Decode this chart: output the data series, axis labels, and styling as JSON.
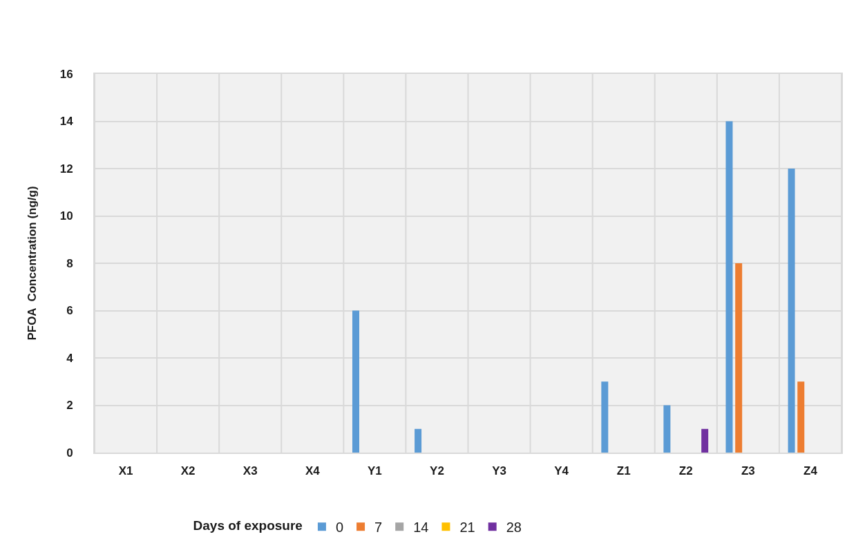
{
  "chart_data": {
    "type": "bar",
    "ylabel": "PFOA  Concentration (ng/g)",
    "legend_title": "Days of exposure",
    "categories": [
      "X1",
      "X2",
      "X3",
      "X4",
      "Y1",
      "Y2",
      "Y3",
      "Y4",
      "Z1",
      "Z2",
      "Z3",
      "Z4"
    ],
    "series": [
      {
        "name": "0",
        "color": "#5b9bd5",
        "values": [
          0,
          0,
          0,
          0,
          6,
          1,
          0,
          0,
          3,
          2,
          14,
          12
        ]
      },
      {
        "name": "7",
        "color": "#ed7d31",
        "values": [
          0,
          0,
          0,
          0,
          0,
          0,
          0,
          0,
          0,
          0,
          8,
          3
        ]
      },
      {
        "name": "14",
        "color": "#a5a5a5",
        "values": [
          0,
          0,
          0,
          0,
          0,
          0,
          0,
          0,
          0,
          0,
          0,
          0
        ]
      },
      {
        "name": "21",
        "color": "#ffc000",
        "values": [
          0,
          0,
          0,
          0,
          0,
          0,
          0,
          0,
          0,
          0,
          0,
          0
        ]
      },
      {
        "name": "28",
        "color": "#7030a0",
        "values": [
          0,
          0,
          0,
          0,
          0,
          0,
          0,
          0,
          0,
          1,
          0,
          0
        ]
      }
    ],
    "ylim": [
      0,
      16
    ],
    "yticks": [
      0,
      2,
      4,
      6,
      8,
      10,
      12,
      14,
      16
    ],
    "grid": true,
    "legend": "bottom"
  }
}
